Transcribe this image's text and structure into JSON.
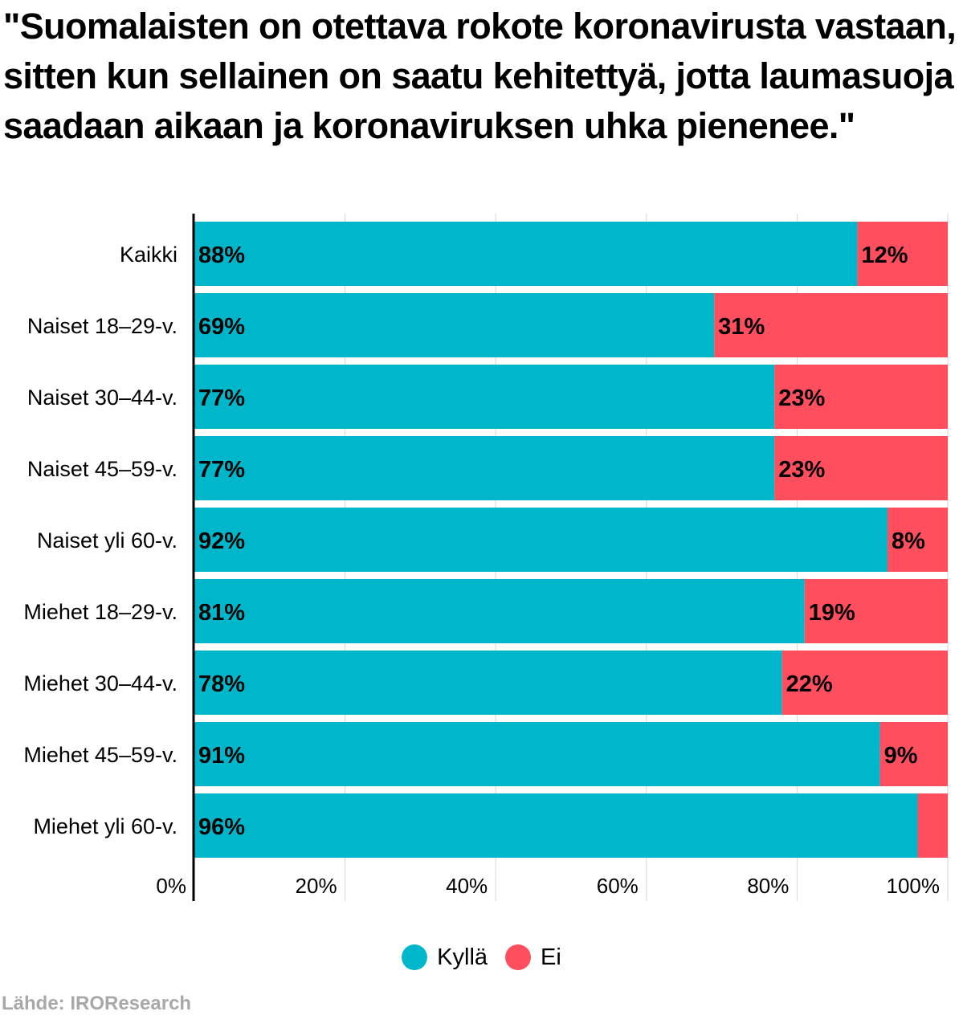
{
  "chart_data": {
    "type": "bar",
    "orientation": "horizontal",
    "stacked": true,
    "title": "\"Suomalaisten on otettava rokote koronavirusta vastaan, sitten kun sellainen on saatu kehitettyä, jotta laumasuoja saadaan aikaan ja koronaviruksen uhka pienenee.\"",
    "categories": [
      "Kaikki",
      "Naiset 18–29-v.",
      "Naiset 30–44-v.",
      "Naiset 45–59-v.",
      "Naiset yli 60-v.",
      "Miehet 18–29-v.",
      "Miehet 30–44-v.",
      "Miehet 45–59-v.",
      "Miehet yli 60-v."
    ],
    "series": [
      {
        "name": "Kyllä",
        "color": "#00b6cb",
        "values": [
          88,
          69,
          77,
          77,
          92,
          81,
          78,
          91,
          96
        ],
        "labels": [
          "88%",
          "69%",
          "77%",
          "77%",
          "92%",
          "81%",
          "78%",
          "91%",
          "96%"
        ]
      },
      {
        "name": "Ei",
        "color": "#ff4f5e",
        "values": [
          12,
          31,
          23,
          23,
          8,
          19,
          22,
          9,
          4
        ],
        "labels": [
          "12%",
          "31%",
          "23%",
          "23%",
          "8%",
          "19%",
          "22%",
          "9%",
          ""
        ]
      }
    ],
    "xlim": [
      0,
      100
    ],
    "x_ticks": [
      0,
      20,
      40,
      60,
      80,
      100
    ],
    "x_tick_labels": [
      "0%",
      "20%",
      "40%",
      "60%",
      "80%",
      "100%"
    ],
    "grid": true,
    "legend_position": "bottom-center"
  },
  "legend": {
    "items": [
      {
        "label": "Kyllä",
        "color": "#00b6cb"
      },
      {
        "label": "Ei",
        "color": "#ff4f5e"
      }
    ]
  },
  "source": "Lähde: IROResearch"
}
